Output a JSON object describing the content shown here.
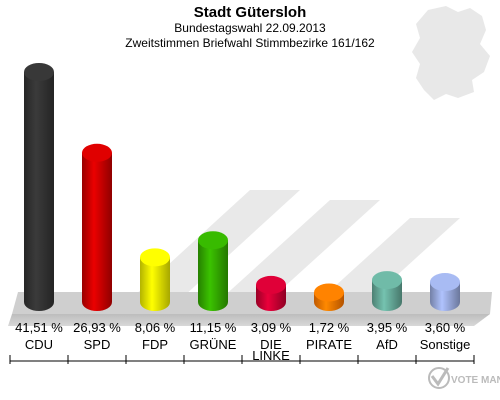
{
  "chart_data": {
    "type": "bar",
    "title": "Stadt Gütersloh",
    "subtitle_1": "Bundestagswahl 22.09.2013",
    "subtitle_2": "Zweitstimmen Briefwahl Stimmbezirke 161/162",
    "categories": [
      "CDU",
      "SPD",
      "FDP",
      "GRÜNE",
      "DIE LINKE",
      "PIRATE",
      "AfD",
      "Sonstige"
    ],
    "value_labels": [
      "41,51 %",
      "26,93 %",
      "8,06 %",
      "11,15 %",
      "3,09 %",
      "1,72 %",
      "3,95 %",
      "3,60 %"
    ],
    "values": [
      41.51,
      26.93,
      8.06,
      11.15,
      3.09,
      1.72,
      3.95,
      3.6
    ],
    "unit": "%",
    "colors": [
      "#333333",
      "#cc0000",
      "#eeee00",
      "#33aa00",
      "#cc0033",
      "#ff7700",
      "#66aa99",
      "#99aadd"
    ],
    "ylim": [
      0,
      45
    ]
  },
  "logo_text": "VOTE MANAGER"
}
